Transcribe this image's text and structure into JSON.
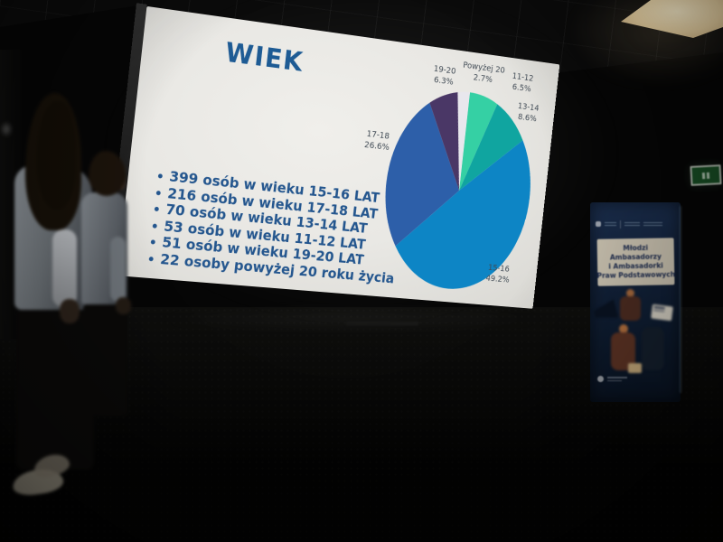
{
  "slide": {
    "title": "WIEK",
    "title_color": "#1e5b94",
    "text_color": "#24568e",
    "bullets": [
      "399 osób w wieku 15-16 LAT",
      "216 osób w wieku 17-18 LAT",
      "70 osób w wieku 13-14 LAT",
      "53 osób w wieku 11-12 LAT",
      "51 osób w wieku 19-20 LAT",
      "22 osoby powyżej 20 roku życia"
    ]
  },
  "chart_data": {
    "type": "pie",
    "title": "WIEK",
    "start_angle_deg": 0,
    "direction": "clockwise",
    "labels_outside": true,
    "legend": "none",
    "segments": [
      {
        "label": "11-12",
        "percent": 6.5,
        "pct_text": "6.5%",
        "count": 53,
        "color": "#35d0a4"
      },
      {
        "label": "13-14",
        "percent": 8.6,
        "pct_text": "8.6%",
        "count": 70,
        "color": "#10a5a0"
      },
      {
        "label": "15-16",
        "percent": 49.2,
        "pct_text": "49.2%",
        "count": 399,
        "color": "#0d85c5"
      },
      {
        "label": "17-18",
        "percent": 26.6,
        "pct_text": "26.6%",
        "count": 216,
        "color": "#2d5fa9"
      },
      {
        "label": "19-20",
        "percent": 6.3,
        "pct_text": "6.3%",
        "count": 51,
        "color": "#4a3766"
      },
      {
        "label": "Powyżej 20",
        "percent": 2.7,
        "pct_text": "2.7%",
        "count": 22,
        "color": "#e8e7ed"
      }
    ]
  },
  "room": {
    "banner": {
      "headline_lines": [
        "Młodzi",
        "Ambasadorzy",
        "i Ambasadorki",
        "Praw Podstawowych"
      ]
    }
  }
}
